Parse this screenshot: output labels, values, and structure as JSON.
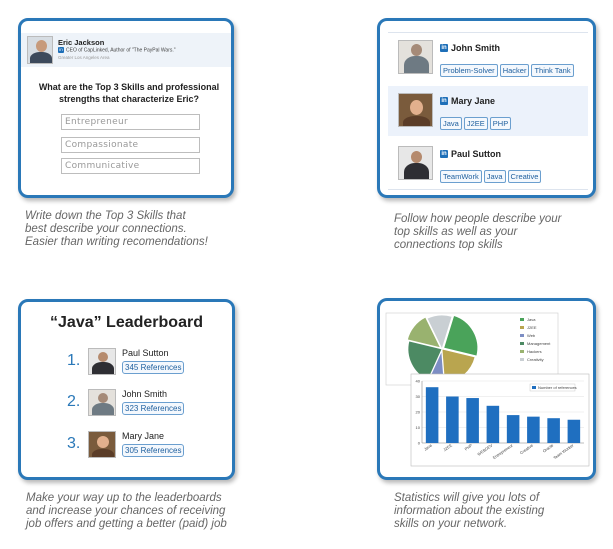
{
  "card1": {
    "profile": {
      "name": "Eric Jackson",
      "title": "CEO of CapLinked, Author of \"The PayPal Wars.\"",
      "location": "Greater Los Angeles Area"
    },
    "question_line1": "What are the Top 3 Skills and professional",
    "question_line2": "strengths that characterize Eric?",
    "inputs": [
      "Entrepreneur",
      "Compassionate",
      "Communicative"
    ]
  },
  "caption1": [
    "Write down the Top 3 Skills that",
    "best describe your connections.",
    "Easier than writing recomendations!"
  ],
  "card2": {
    "connections": [
      {
        "name": "John Smith",
        "tags": [
          "Problem-Solver",
          "Hacker",
          "Think Tank"
        ]
      },
      {
        "name": "Mary Jane",
        "tags": [
          "Java",
          "J2EE",
          "PHP"
        ]
      },
      {
        "name": "Paul Sutton",
        "tags": [
          "TeamWork",
          "Java",
          "Creative"
        ]
      }
    ]
  },
  "caption2": [
    "Follow how people describe your",
    "top skills as well as your",
    "connections top skills"
  ],
  "card3": {
    "title": "“Java” Leaderboard",
    "entries": [
      {
        "rank": "1.",
        "name": "Paul Sutton",
        "refs": "345 References"
      },
      {
        "rank": "2.",
        "name": "John Smith",
        "refs": "323 References"
      },
      {
        "rank": "3.",
        "name": "Mary Jane",
        "refs": "305 References"
      }
    ]
  },
  "caption3": [
    "Make your way up to the leaderboards",
    "and increase your chances of receiving",
    "job offers and getting a better (paid) job"
  ],
  "caption4": [
    "Statistics will give you lots of",
    "information about the existing",
    "skills on your network."
  ],
  "colors": {
    "accent": "#2a78b8",
    "linkedin": "#1e6fb8",
    "tag_text": "#1e5f9e",
    "bar": "#1f6fc0"
  },
  "chart_data": [
    {
      "type": "pie",
      "labels": [
        "Java",
        "J2EE",
        "Web",
        "Management",
        "Hackers",
        "Creativity"
      ],
      "values": [
        24,
        20,
        8,
        22,
        14,
        12
      ],
      "colors": [
        "#4aa35a",
        "#b9a54f",
        "#7d8ec4",
        "#4c8a63",
        "#99b26f",
        "#c9cfd3"
      ]
    },
    {
      "type": "bar",
      "categories": [
        "Java",
        "J2EE",
        "PHP",
        "WEBDEV",
        "Entrepreneur",
        "Creative",
        "Oracle",
        "Team Worker"
      ],
      "series": [
        {
          "name": "Number of references",
          "values": [
            36,
            30,
            29,
            24,
            18,
            17,
            16,
            15
          ]
        }
      ],
      "ylim": [
        0,
        40
      ],
      "grid": true,
      "legend": "top-right"
    }
  ]
}
